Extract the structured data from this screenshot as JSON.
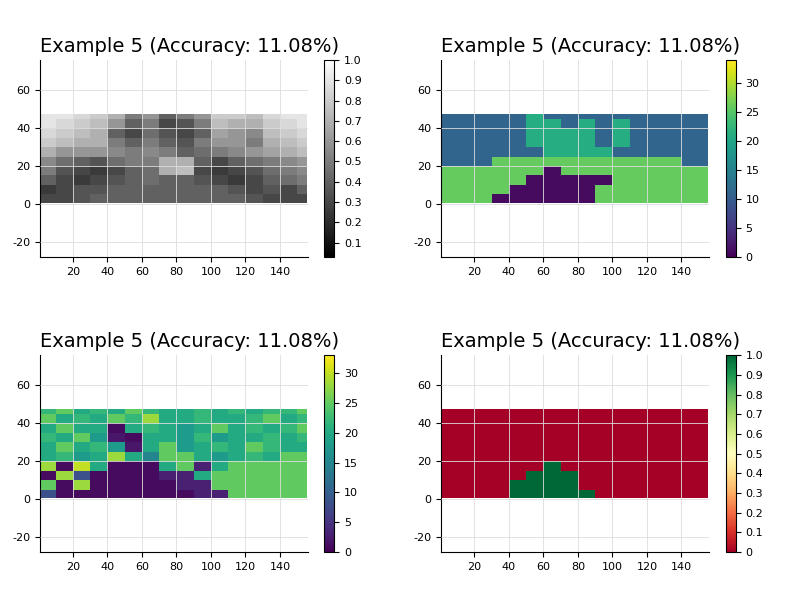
{
  "chart_data": [
    {
      "type": "heatmap",
      "title": "Example 5 (Accuracy: 11.08%)",
      "color": "gray",
      "grid": true,
      "x": [
        0.5,
        10,
        20,
        30,
        40,
        50,
        60,
        70,
        80,
        90,
        100,
        110,
        120,
        130,
        140,
        150,
        155.5
      ],
      "y": [
        0.5,
        5,
        10,
        15,
        20,
        25,
        30,
        35,
        40,
        45,
        47.5
      ],
      "xlim": [
        1,
        156
      ],
      "ylim": [
        -28,
        76
      ],
      "xticks": [
        20,
        40,
        60,
        80,
        100,
        120,
        140
      ],
      "yticks": [
        -20,
        0,
        20,
        40,
        60
      ],
      "zlim": [
        0.03,
        1.0
      ],
      "zticks": [
        0.1,
        0.2,
        0.3,
        0.4,
        0.5,
        0.6,
        0.7,
        0.8,
        0.9,
        1.0
      ],
      "cells": [
        [
          0.3,
          0.3,
          0.35,
          0.4,
          0.4,
          0.4,
          0.4,
          0.4,
          0.4,
          0.4,
          0.4,
          0.4,
          0.35,
          0.3,
          0.3,
          0.3
        ],
        [
          0.25,
          0.3,
          0.35,
          0.35,
          0.4,
          0.4,
          0.4,
          0.4,
          0.4,
          0.4,
          0.4,
          0.35,
          0.3,
          0.35,
          0.3,
          0.4
        ],
        [
          0.4,
          0.3,
          0.25,
          0.3,
          0.35,
          0.4,
          0.45,
          0.4,
          0.4,
          0.35,
          0.3,
          0.25,
          0.3,
          0.4,
          0.45,
          0.5
        ],
        [
          0.5,
          0.35,
          0.3,
          0.25,
          0.3,
          0.4,
          0.45,
          0.7,
          0.75,
          0.3,
          0.25,
          0.3,
          0.35,
          0.45,
          0.5,
          0.55
        ],
        [
          0.55,
          0.45,
          0.4,
          0.35,
          0.45,
          0.5,
          0.5,
          0.7,
          0.7,
          0.4,
          0.3,
          0.4,
          0.45,
          0.5,
          0.55,
          0.6
        ],
        [
          0.7,
          0.6,
          0.6,
          0.6,
          0.55,
          0.5,
          0.55,
          0.5,
          0.4,
          0.45,
          0.5,
          0.55,
          0.6,
          0.65,
          0.7,
          0.75
        ],
        [
          0.8,
          0.75,
          0.7,
          0.7,
          0.5,
          0.4,
          0.5,
          0.4,
          0.35,
          0.5,
          0.6,
          0.6,
          0.5,
          0.7,
          0.75,
          0.8
        ],
        [
          0.85,
          0.8,
          0.75,
          0.7,
          0.4,
          0.3,
          0.45,
          0.35,
          0.3,
          0.4,
          0.65,
          0.6,
          0.55,
          0.75,
          0.8,
          0.85
        ],
        [
          0.9,
          0.85,
          0.8,
          0.75,
          0.6,
          0.4,
          0.5,
          0.3,
          0.35,
          0.5,
          0.75,
          0.7,
          0.7,
          0.8,
          0.85,
          0.9
        ],
        [
          0.9,
          0.9,
          0.85,
          0.8,
          0.7,
          0.5,
          0.6,
          0.4,
          0.5,
          0.6,
          0.8,
          0.8,
          0.75,
          0.85,
          0.9,
          0.9
        ]
      ]
    },
    {
      "type": "heatmap",
      "title": "Example 5 (Accuracy: 11.08%)",
      "color": "viridis",
      "grid": true,
      "x": [
        0.5,
        10,
        20,
        30,
        40,
        50,
        60,
        70,
        80,
        90,
        100,
        110,
        120,
        130,
        140,
        150,
        155.5
      ],
      "y": [
        0.5,
        5,
        10,
        15,
        20,
        25,
        30,
        35,
        40,
        45,
        47.5
      ],
      "xlim": [
        1,
        156
      ],
      "ylim": [
        -28,
        76
      ],
      "xticks": [
        20,
        40,
        60,
        80,
        100,
        120,
        140
      ],
      "yticks": [
        -20,
        0,
        20,
        40,
        60
      ],
      "zlim": [
        0,
        34
      ],
      "zticks": [
        0,
        5,
        10,
        15,
        20,
        25,
        30
      ],
      "cells": [
        [
          26,
          26,
          26,
          1,
          1,
          1,
          1,
          1,
          1,
          26,
          26,
          26,
          26,
          26,
          26,
          26
        ],
        [
          26,
          26,
          26,
          26,
          1,
          1,
          1,
          1,
          1,
          26,
          26,
          26,
          26,
          26,
          26,
          26
        ],
        [
          26,
          26,
          26,
          26,
          26,
          1,
          1,
          1,
          1,
          1,
          26,
          26,
          26,
          26,
          26,
          26
        ],
        [
          26,
          26,
          26,
          26,
          26,
          26,
          1,
          26,
          26,
          26,
          26,
          26,
          26,
          26,
          26,
          26
        ],
        [
          11,
          11,
          11,
          26,
          26,
          26,
          26,
          26,
          26,
          26,
          26,
          26,
          26,
          26,
          11,
          11
        ],
        [
          11,
          11,
          11,
          11,
          11,
          11,
          21,
          21,
          21,
          21,
          11,
          11,
          11,
          11,
          11,
          11
        ],
        [
          11,
          11,
          11,
          11,
          11,
          21,
          21,
          21,
          21,
          11,
          21,
          11,
          11,
          11,
          11,
          11
        ],
        [
          11,
          11,
          11,
          11,
          11,
          21,
          21,
          21,
          21,
          11,
          21,
          11,
          11,
          11,
          11,
          11
        ],
        [
          11,
          11,
          11,
          11,
          11,
          21,
          21,
          11,
          21,
          11,
          21,
          11,
          11,
          11,
          11,
          11
        ],
        [
          11,
          11,
          11,
          11,
          11,
          21,
          11,
          11,
          11,
          11,
          11,
          11,
          11,
          11,
          11,
          11
        ]
      ]
    },
    {
      "type": "heatmap",
      "title": "Example 5 (Accuracy: 11.08%)",
      "color": "viridis",
      "grid": true,
      "x": [
        0.5,
        10,
        20,
        30,
        40,
        50,
        60,
        70,
        80,
        90,
        100,
        110,
        120,
        130,
        140,
        150,
        155.5
      ],
      "y": [
        0.5,
        5,
        10,
        15,
        20,
        25,
        30,
        35,
        40,
        45,
        47.5
      ],
      "xlim": [
        1,
        156
      ],
      "ylim": [
        -28,
        76
      ],
      "xticks": [
        20,
        40,
        60,
        80,
        100,
        120,
        140
      ],
      "yticks": [
        -20,
        0,
        20,
        40,
        60
      ],
      "zlim": [
        0,
        33
      ],
      "zticks": [
        0,
        5,
        10,
        15,
        20,
        25,
        30
      ],
      "cells": [
        [
          8,
          1,
          1,
          1,
          1,
          1,
          1,
          1,
          1,
          3,
          3,
          25,
          25,
          25,
          25,
          25
        ],
        [
          25,
          1,
          28,
          1,
          1,
          1,
          1,
          1,
          3,
          3,
          25,
          25,
          25,
          25,
          25,
          25
        ],
        [
          1,
          28,
          8,
          1,
          1,
          1,
          1,
          3,
          3,
          20,
          25,
          25,
          25,
          25,
          25,
          25
        ],
        [
          28,
          1,
          30,
          20,
          1,
          1,
          1,
          20,
          25,
          3,
          20,
          25,
          25,
          25,
          25,
          25
        ],
        [
          20,
          22,
          18,
          20,
          28,
          20,
          15,
          25,
          25,
          20,
          18,
          20,
          22,
          20,
          25,
          25
        ],
        [
          20,
          25,
          20,
          22,
          18,
          2,
          20,
          25,
          18,
          20,
          22,
          20,
          25,
          22,
          20,
          20
        ],
        [
          22,
          20,
          25,
          18,
          2,
          1,
          20,
          20,
          18,
          22,
          18,
          20,
          20,
          22,
          20,
          22
        ],
        [
          20,
          25,
          20,
          20,
          1,
          20,
          22,
          20,
          18,
          20,
          25,
          20,
          22,
          20,
          22,
          25
        ],
        [
          25,
          20,
          22,
          20,
          25,
          22,
          28,
          20,
          20,
          22,
          20,
          20,
          22,
          25,
          20,
          22
        ],
        [
          22,
          25,
          20,
          22,
          20,
          25,
          22,
          20,
          20,
          22,
          20,
          22,
          20,
          22,
          22,
          25
        ]
      ]
    },
    {
      "type": "heatmap",
      "title": "Example 5 (Accuracy: 11.08%)",
      "color": "RdYlGn",
      "grid": true,
      "x": [
        0.5,
        10,
        20,
        30,
        40,
        50,
        60,
        70,
        80,
        90,
        100,
        110,
        120,
        130,
        140,
        150,
        155.5
      ],
      "y": [
        0.5,
        5,
        10,
        15,
        20,
        25,
        30,
        35,
        40,
        45,
        47.5
      ],
      "xlim": [
        1,
        156
      ],
      "ylim": [
        -28,
        76
      ],
      "xticks": [
        20,
        40,
        60,
        80,
        100,
        120,
        140
      ],
      "yticks": [
        -20,
        0,
        20,
        40,
        60
      ],
      "zlim": [
        0,
        1.0
      ],
      "zticks": [
        0,
        0.1,
        0.2,
        0.3,
        0.4,
        0.5,
        0.6,
        0.7,
        0.8,
        0.9,
        1.0
      ],
      "cells": [
        [
          0,
          0,
          0,
          0,
          1,
          1,
          1,
          1,
          1,
          0,
          0,
          0,
          0,
          0,
          0,
          0
        ],
        [
          0,
          0,
          0,
          0,
          1,
          1,
          1,
          1,
          0,
          0,
          0,
          0,
          0,
          0,
          0,
          0
        ],
        [
          0,
          0,
          0,
          0,
          0,
          1,
          1,
          1,
          0,
          0,
          0,
          0,
          0,
          0,
          0,
          0
        ],
        [
          0,
          0,
          0,
          0,
          0,
          0,
          1,
          0,
          0,
          0,
          0,
          0,
          0,
          0,
          0,
          0
        ],
        [
          0,
          0,
          0,
          0,
          0,
          0,
          0,
          0,
          0,
          0,
          0,
          0,
          0,
          0,
          0,
          0
        ],
        [
          0,
          0,
          0,
          0,
          0,
          0,
          0,
          0,
          0,
          0,
          0,
          0,
          0,
          0,
          0,
          0
        ],
        [
          0,
          0,
          0,
          0,
          0,
          0,
          0,
          0,
          0,
          0,
          0,
          0,
          0,
          0,
          0,
          0
        ],
        [
          0,
          0,
          0,
          0,
          0,
          0,
          0,
          0,
          0,
          0,
          0,
          0,
          0,
          0,
          0,
          0
        ],
        [
          0,
          0,
          0,
          0,
          0,
          0,
          0,
          0,
          0,
          0,
          0,
          0,
          0,
          0,
          0,
          0
        ],
        [
          0,
          0,
          0,
          0,
          0,
          0,
          0,
          0,
          0,
          0,
          0,
          0,
          0,
          0,
          0,
          0
        ]
      ]
    }
  ]
}
